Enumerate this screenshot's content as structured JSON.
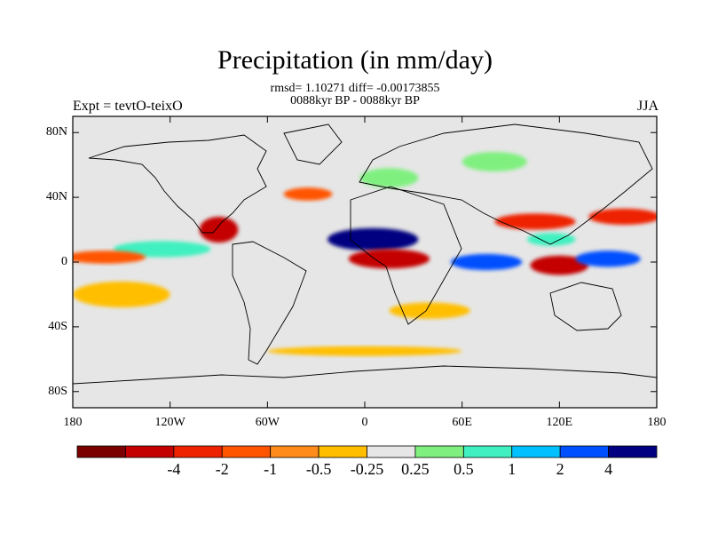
{
  "title": "Precipitation (in mm/day)",
  "stats": "rmsd= 1.10271 diff= -0.00173855",
  "period": "0088kyr BP - 0088kyr BP",
  "experiment": "Expt = tevtO-teixO",
  "season": "JJA",
  "map": {
    "lon_range": [
      -180,
      180
    ],
    "lat_range": [
      -90,
      90
    ],
    "lat_ticks": [
      {
        "value": 80,
        "label": "80N"
      },
      {
        "value": 40,
        "label": "40N"
      },
      {
        "value": 0,
        "label": "0"
      },
      {
        "value": -40,
        "label": "40S"
      },
      {
        "value": -80,
        "label": "80S"
      }
    ],
    "lon_ticks": [
      {
        "value": -180,
        "label": "180"
      },
      {
        "value": -120,
        "label": "120W"
      },
      {
        "value": -60,
        "label": "60W"
      },
      {
        "value": 0,
        "label": "0"
      },
      {
        "value": 60,
        "label": "60E"
      },
      {
        "value": 120,
        "label": "120E"
      },
      {
        "value": 180,
        "label": "180"
      }
    ],
    "background_color": "#e6e6e6"
  },
  "colorbar": {
    "colors": [
      "#7a0000",
      "#c40000",
      "#ee2200",
      "#ff5500",
      "#ff8c1a",
      "#ffbf00",
      "#e6e6e6",
      "#7ff07f",
      "#40f0c0",
      "#00c0ff",
      "#0050ff",
      "#000080"
    ],
    "labels": [
      {
        "index": 1,
        "label": "-4"
      },
      {
        "index": 2,
        "label": "-2"
      },
      {
        "index": 3,
        "label": "-1"
      },
      {
        "index": 4,
        "label": "-0.5"
      },
      {
        "index": 5,
        "label": "-0.25"
      },
      {
        "index": 6,
        "label": "0.25"
      },
      {
        "index": 7,
        "label": "0.5"
      },
      {
        "index": 8,
        "label": "1"
      },
      {
        "index": 9,
        "label": "2"
      },
      {
        "index": 10,
        "label": "4"
      }
    ]
  },
  "anomalies": [
    {
      "region": "eastern-pacific-itcz",
      "lon": -125,
      "lat": 8,
      "level": 1,
      "rx": 30,
      "ry": 5
    },
    {
      "region": "central-pacific-dry",
      "lon": -160,
      "lat": 3,
      "level": -0.5,
      "rx": 25,
      "ry": 4
    },
    {
      "region": "sahel-wet",
      "lon": 5,
      "lat": 14,
      "level": 4,
      "rx": 28,
      "ry": 7
    },
    {
      "region": "gulf-guinea-dry",
      "lon": 15,
      "lat": 2,
      "level": -2,
      "rx": 25,
      "ry": 6
    },
    {
      "region": "indian-ocean-wet",
      "lon": 75,
      "lat": 0,
      "level": 2,
      "rx": 22,
      "ry": 5
    },
    {
      "region": "maritime-continent-dry",
      "lon": 120,
      "lat": -2,
      "level": -2,
      "rx": 18,
      "ry": 6
    },
    {
      "region": "west-pacific-wet",
      "lon": 150,
      "lat": 2,
      "level": 2,
      "rx": 20,
      "ry": 5
    },
    {
      "region": "southeast-asia-dry",
      "lon": 105,
      "lat": 25,
      "level": -1,
      "rx": 25,
      "ry": 5
    },
    {
      "region": "north-pacific-dry",
      "lon": 160,
      "lat": 28,
      "level": -1,
      "rx": 22,
      "ry": 5
    },
    {
      "region": "east-asia-wet",
      "lon": 115,
      "lat": 14,
      "level": 1,
      "rx": 15,
      "ry": 4
    },
    {
      "region": "north-atlantic-dry",
      "lon": -35,
      "lat": 42,
      "level": -0.5,
      "rx": 15,
      "ry": 4
    },
    {
      "region": "europe-wet",
      "lon": 15,
      "lat": 52,
      "level": 0.5,
      "rx": 18,
      "ry": 6
    },
    {
      "region": "siberia-wet",
      "lon": 80,
      "lat": 62,
      "level": 0.5,
      "rx": 20,
      "ry": 6
    },
    {
      "region": "south-pacific-dry",
      "lon": -150,
      "lat": -20,
      "level": -0.25,
      "rx": 30,
      "ry": 8
    },
    {
      "region": "south-indian-dry",
      "lon": 40,
      "lat": -30,
      "level": -0.25,
      "rx": 25,
      "ry": 5
    },
    {
      "region": "southern-ocean-dry",
      "lon": 0,
      "lat": -55,
      "level": -0.25,
      "rx": 60,
      "ry": 3
    },
    {
      "region": "america-dry",
      "lon": -90,
      "lat": 20,
      "level": -2,
      "rx": 12,
      "ry": 8
    }
  ]
}
